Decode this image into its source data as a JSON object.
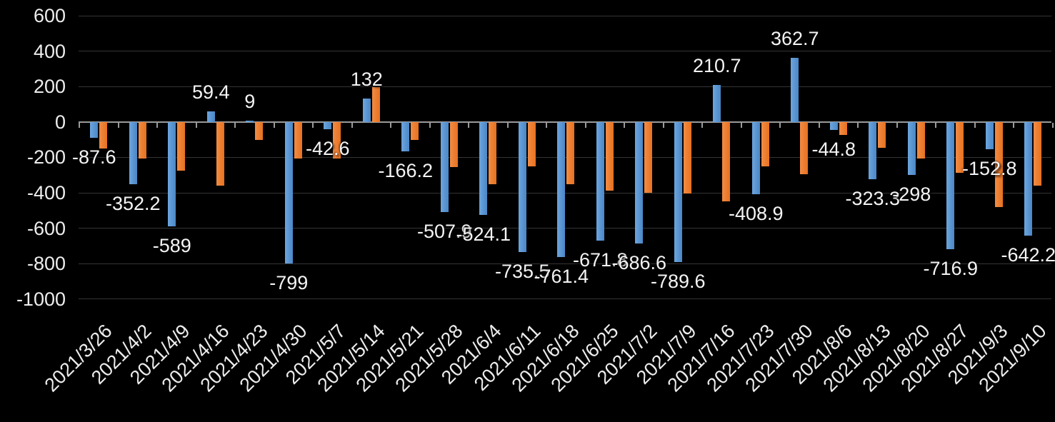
{
  "chart_data": {
    "type": "bar",
    "title": "",
    "xlabel": "",
    "ylabel": "",
    "categories": [
      "2021/3/26",
      "2021/4/2",
      "2021/4/9",
      "2021/4/16",
      "2021/4/23",
      "2021/4/30",
      "2021/5/7",
      "2021/5/14",
      "2021/5/21",
      "2021/5/28",
      "2021/6/4",
      "2021/6/11",
      "2021/6/18",
      "2021/6/25",
      "2021/7/2",
      "2021/7/9",
      "2021/7/16",
      "2021/7/23",
      "2021/7/30",
      "2021/8/6",
      "2021/8/13",
      "2021/8/20",
      "2021/8/27",
      "2021/9/3",
      "2021/9/10"
    ],
    "series": [
      {
        "name": "blue",
        "color": "#4E8FD0",
        "data_labels_visible": true,
        "values": [
          -87.6,
          -352.2,
          -589,
          59.4,
          9,
          -799,
          -42.6,
          132,
          -166.2,
          -507.9,
          -524.1,
          -735.5,
          -761.4,
          -671.8,
          -686.6,
          -789.6,
          210.7,
          -408.9,
          362.7,
          -44.8,
          -323.3,
          -298,
          -716.9,
          -152.8,
          -642.2
        ]
      },
      {
        "name": "orange",
        "color": "#ED7D31",
        "data_labels_visible": false,
        "estimated": true,
        "values": [
          -150,
          -205,
          -275,
          -358,
          -100,
          -205,
          -207,
          195,
          -100,
          -253,
          -352,
          -250,
          -350,
          -388,
          -400,
          -405,
          -450,
          -252,
          -295,
          -75,
          -145,
          -205,
          -288,
          -480,
          -358
        ]
      }
    ],
    "ylim": [
      -1000,
      600
    ],
    "yticks": [
      600,
      400,
      200,
      0,
      -200,
      -400,
      -600,
      -800,
      -1000
    ],
    "grid": true,
    "legend_position": "none",
    "x_tick_label_rotation_deg": 45,
    "background_color": "#000000",
    "text_color": "#EDEDED",
    "gridline_color": "#343434",
    "axis_line_color": "#9A9A9A"
  }
}
